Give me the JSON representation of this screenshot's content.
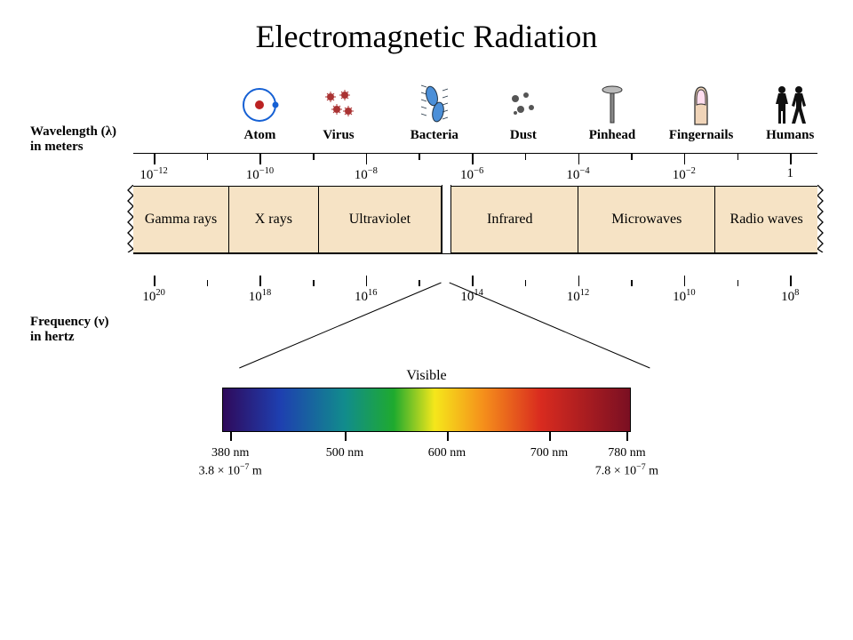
{
  "title": "Electromagnetic Radiation",
  "wavelength_axis": {
    "label_line1": "Wavelength (λ)",
    "label_line2": "in meters",
    "majors": [
      {
        "pct": 3,
        "html": "10<sup>−12</sup>"
      },
      {
        "pct": 18.5,
        "html": "10<sup>−10</sup>"
      },
      {
        "pct": 34,
        "html": "10<sup>−8</sup>"
      },
      {
        "pct": 49.5,
        "html": "10<sup>−6</sup>"
      },
      {
        "pct": 65,
        "html": "10<sup>−4</sup>"
      },
      {
        "pct": 80.5,
        "html": "10<sup>−2</sup>"
      },
      {
        "pct": 96,
        "html": "1"
      }
    ],
    "minors_pct": [
      10.75,
      26.25,
      41.75,
      57.25,
      72.75,
      88.25
    ]
  },
  "icons": [
    {
      "pct": 18.5,
      "name": "Atom",
      "icon": "atom"
    },
    {
      "pct": 30,
      "name": "Virus",
      "icon": "virus"
    },
    {
      "pct": 44,
      "name": "Bacteria",
      "icon": "bacteria"
    },
    {
      "pct": 57,
      "name": "Dust",
      "icon": "dust"
    },
    {
      "pct": 70,
      "name": "Pinhead",
      "icon": "pinhead"
    },
    {
      "pct": 83,
      "name": "Fingernails",
      "icon": "fingernail"
    },
    {
      "pct": 96,
      "name": "Humans",
      "icon": "humans"
    }
  ],
  "bands": {
    "bg_color": "#f6e3c5",
    "segments": [
      {
        "label": "Gamma rays",
        "width_pct": 14
      },
      {
        "label": "X rays",
        "width_pct": 13
      },
      {
        "label": "Ultraviolet",
        "width_pct": 18
      },
      {
        "label": "Infrared",
        "width_pct": 20
      },
      {
        "label": "Microwaves",
        "width_pct": 20
      },
      {
        "label": "Radio waves",
        "width_pct": 15
      }
    ],
    "visible_gap_left_pct": 45,
    "visible_gap_width_pct": 1.2
  },
  "frequency_axis": {
    "label_line1": "Frequency (ν)",
    "label_line2": "in hertz",
    "majors": [
      {
        "pct": 3,
        "html": "10<sup>20</sup>"
      },
      {
        "pct": 18.5,
        "html": "10<sup>18</sup>"
      },
      {
        "pct": 34,
        "html": "10<sup>16</sup>"
      },
      {
        "pct": 49.5,
        "html": "10<sup>14</sup>"
      },
      {
        "pct": 65,
        "html": "10<sup>12</sup>"
      },
      {
        "pct": 80.5,
        "html": "10<sup>10</sup>"
      },
      {
        "pct": 96,
        "html": "10<sup>8</sup>"
      }
    ],
    "minors_pct": [
      10.75,
      26.25,
      41.75,
      57.25,
      72.75,
      88.25
    ]
  },
  "visible": {
    "title": "Visible",
    "gradient_stops": [
      {
        "pct": 0,
        "color": "#2f0a5b"
      },
      {
        "pct": 14,
        "color": "#1e3fb0"
      },
      {
        "pct": 30,
        "color": "#118c8c"
      },
      {
        "pct": 42,
        "color": "#1faa2e"
      },
      {
        "pct": 52,
        "color": "#f5e71b"
      },
      {
        "pct": 64,
        "color": "#f58f1b"
      },
      {
        "pct": 78,
        "color": "#d92b1f"
      },
      {
        "pct": 100,
        "color": "#7a0f22"
      }
    ],
    "ticks": [
      {
        "pct": 2,
        "top": "380 nm",
        "bottom": "3.8 × 10<sup>−7</sup> m"
      },
      {
        "pct": 30,
        "top": "500 nm"
      },
      {
        "pct": 55,
        "top": "600 nm"
      },
      {
        "pct": 80,
        "top": "700 nm"
      },
      {
        "pct": 99,
        "top": "780 nm",
        "bottom": "7.8 × 10<sup>−7</sup> m"
      }
    ]
  }
}
